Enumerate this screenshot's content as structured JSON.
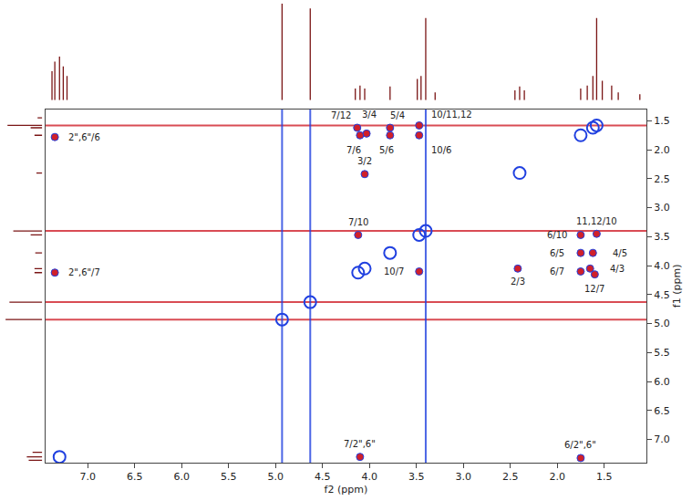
{
  "chart_data": {
    "type": "nmr_2d",
    "xlabel": "f2 (ppm)",
    "ylabel": "f1 (ppm)",
    "xlim": [
      7.45,
      1.05
    ],
    "ylim": [
      7.4,
      1.3
    ],
    "xticks": [
      {
        "value": 7,
        "label": "7.0"
      },
      6.5,
      {
        "value": 6,
        "label": "6.0"
      },
      5.5,
      {
        "value": 5,
        "label": "5.0"
      },
      4.5,
      {
        "value": 4,
        "label": "4.0"
      },
      3.5,
      {
        "value": 3,
        "label": "3.0"
      },
      2.5,
      {
        "value": 2,
        "label": "2.0"
      },
      1.5
    ],
    "yticks": [
      1.5,
      {
        "value": 2,
        "label": "2.0"
      },
      2.5,
      {
        "value": 3,
        "label": "3.0"
      },
      3.5,
      {
        "value": 4,
        "label": "4.0"
      },
      4.5,
      {
        "value": 5,
        "label": "5.0"
      },
      5.5,
      {
        "value": 6,
        "label": "6.0"
      },
      6.5,
      {
        "value": 7,
        "label": "7.0"
      }
    ],
    "grid": false,
    "cross_peaks": {
      "color": "#d0202a",
      "x": [
        4.13,
        4.1,
        4.03,
        3.78,
        3.78,
        3.47,
        3.47,
        4.05,
        7.35,
        7.35,
        4.12,
        3.47,
        2.42,
        1.75,
        1.58,
        1.75,
        1.62,
        1.75,
        1.65,
        1.6,
        4.1,
        1.75
      ],
      "y": [
        1.62,
        1.75,
        1.72,
        1.62,
        1.75,
        1.58,
        1.75,
        2.42,
        1.78,
        4.12,
        3.47,
        4.1,
        4.05,
        3.47,
        3.45,
        3.78,
        3.78,
        4.1,
        4.05,
        4.15,
        7.3,
        7.32
      ],
      "labels": [
        "7/12",
        "7/6",
        "3/4",
        "5/4",
        "5/6",
        "10/11,12",
        "10/6",
        "3/2",
        "2\",6\"/6",
        "2\",6\"/7",
        "7/10",
        "10/7",
        "2/3",
        "6/10",
        "11,12/10",
        "6/5",
        "4/5",
        "6/7",
        "4/3",
        "12/7",
        "7/2\",6\"",
        "6/2\",6\""
      ]
    },
    "diagonal": {
      "color": "#2040e0",
      "values": [
        7.3,
        4.93,
        4.63,
        4.12,
        4.05,
        3.78,
        3.47,
        3.4,
        2.4,
        1.75,
        1.62,
        1.58
      ]
    },
    "t1_ridges": {
      "rows": [
        1.58,
        3.4,
        4.63,
        4.93
      ],
      "row_color": "#d0202a",
      "columns": [
        4.93,
        4.63,
        3.4
      ],
      "column_color": "#2040e0"
    },
    "projection_range": [
      0,
      100
    ],
    "projection_f2": {
      "color": "#7a1515",
      "x": [
        7.38,
        7.35,
        7.3,
        7.26,
        7.22,
        4.93,
        4.63,
        4.15,
        4.1,
        4.05,
        3.78,
        3.49,
        3.45,
        3.4,
        3.3,
        2.45,
        2.4,
        2.35,
        1.75,
        1.68,
        1.62,
        1.58,
        1.52,
        1.42,
        1.35,
        1.12
      ],
      "values": [
        30,
        40,
        45,
        35,
        25,
        100,
        95,
        12,
        15,
        12,
        14,
        22,
        25,
        85,
        8,
        10,
        14,
        10,
        12,
        15,
        25,
        85,
        20,
        15,
        8,
        6
      ]
    },
    "projection_f1": {
      "color": "#7a1515",
      "y": [
        1.45,
        1.58,
        1.62,
        1.75,
        2.4,
        3.4,
        3.47,
        3.78,
        4.05,
        4.12,
        4.63,
        4.93,
        7.22,
        7.3,
        7.36
      ],
      "values": [
        12,
        90,
        30,
        20,
        15,
        75,
        30,
        18,
        20,
        20,
        85,
        95,
        25,
        40,
        35
      ]
    }
  }
}
